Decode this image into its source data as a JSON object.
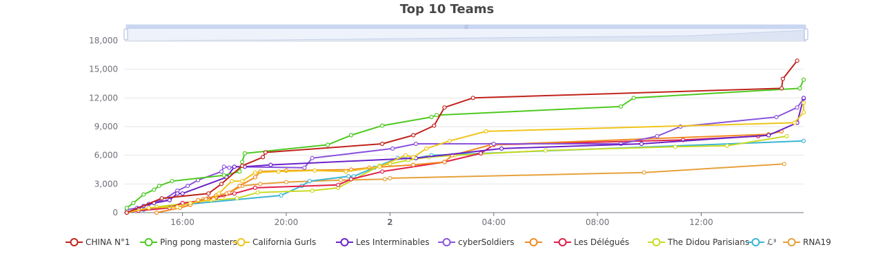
{
  "chart_data": {
    "type": "line",
    "title": "Top 10 Teams",
    "xlabel": "",
    "ylabel": "",
    "ylim": [
      0,
      18000
    ],
    "y_ticks": [
      0,
      3000,
      6000,
      9000,
      12000,
      15000,
      18000
    ],
    "y_tick_labels": [
      "0",
      "3,000",
      "6,000",
      "9,000",
      "12,000",
      "15,000",
      "18,000"
    ],
    "x_ticks": [
      16,
      20,
      24,
      28,
      32,
      36
    ],
    "x_tick_labels": [
      "16:00",
      "20:00",
      "2",
      "04:00",
      "08:00",
      "12:00"
    ],
    "x_unit": "hours",
    "xlim": [
      13.75,
      39.95
    ],
    "grid": true,
    "legend_position": "bottom",
    "has_zoom_slider": true,
    "series": [
      {
        "name": "CHINA N°1",
        "color": "#c0221b",
        "x": [
          13.85,
          15.2,
          17.0,
          17.5,
          18.3,
          19.1,
          19.2,
          23.7,
          24.9,
          25.7,
          26.1,
          27.2,
          39.1,
          39.15,
          39.7
        ],
        "y": [
          0,
          1500,
          2000,
          3000,
          4900,
          5800,
          6300,
          7200,
          8100,
          9100,
          11000,
          12000,
          13000,
          14000,
          15900
        ]
      },
      {
        "name": "Ping pong masters",
        "color": "#4cc91f",
        "x": [
          13.85,
          14.1,
          14.5,
          14.9,
          15.1,
          15.6,
          17.6,
          18.2,
          18.3,
          18.4,
          21.6,
          22.5,
          23.7,
          25.6,
          25.8,
          32.9,
          33.4,
          39.8,
          39.95
        ],
        "y": [
          500,
          1000,
          1900,
          2400,
          2800,
          3300,
          3900,
          4300,
          5300,
          6200,
          7100,
          8100,
          9100,
          10000,
          10200,
          11100,
          12000,
          13000,
          13900
        ]
      },
      {
        "name": "California Gurls",
        "color": "#f0c419",
        "x": [
          13.85,
          14.7,
          15.8,
          16.3,
          17.2,
          17.4,
          17.9,
          18.3,
          18.8,
          19.7,
          21.1,
          22.3,
          23.6,
          24.6,
          24.9,
          25.4,
          26.3,
          27.7,
          39.6,
          39.95,
          39.95
        ],
        "y": [
          0,
          500,
          600,
          1000,
          1400,
          2000,
          3300,
          3300,
          4200,
          4300,
          4400,
          4300,
          4800,
          6000,
          5800,
          6700,
          7500,
          8500,
          9400,
          10500,
          11500
        ]
      },
      {
        "name": "Les Interminables",
        "color": "#6a22c8",
        "x": [
          13.85,
          14.3,
          14.5,
          14.9,
          15.5,
          15.8,
          16.0,
          17.7,
          18.0,
          18.4,
          19.4,
          25.0,
          28.3,
          33.7,
          38.6,
          39.7,
          39.95
        ],
        "y": [
          0,
          400,
          700,
          1000,
          1300,
          2000,
          2000,
          3700,
          4800,
          4800,
          5000,
          5700,
          6700,
          7200,
          8100,
          9400,
          12000
        ]
      },
      {
        "name": "cyberSoldiers",
        "color": "#8a52dc",
        "x": [
          13.85,
          14.25,
          14.7,
          15.3,
          15.8,
          16.2,
          16.6,
          17.5,
          17.6,
          17.8,
          18.0,
          20.7,
          21.0,
          24.1,
          25.0,
          28.0,
          32.9,
          34.3,
          35.2,
          38.9,
          39.7,
          39.95
        ],
        "y": [
          300,
          500,
          900,
          1400,
          2300,
          2800,
          3400,
          4300,
          4800,
          4700,
          4800,
          4700,
          5700,
          6700,
          7200,
          7200,
          7200,
          8000,
          9000,
          10000,
          11000,
          11900
        ]
      },
      {
        "name": "",
        "color": "#f08a24",
        "x": [
          15.0,
          15.9,
          16.3,
          16.6,
          16.9,
          17.3,
          17.7,
          17.8,
          18.2,
          18.8,
          19.0,
          20.0,
          22.5,
          23.2,
          24.9,
          26.1,
          26.4,
          27.9,
          38.6,
          39.1
        ],
        "y": [
          0,
          500,
          800,
          1300,
          1400,
          1800,
          2000,
          2100,
          2800,
          3700,
          4300,
          4400,
          4500,
          4700,
          5000,
          5300,
          6000,
          7100,
          8200,
          8500
        ]
      },
      {
        "name": "Les Délégués",
        "color": "#e01e48",
        "x": [
          13.85,
          14.3,
          15.5,
          16.0,
          16.6,
          17.0,
          17.3,
          18.0,
          18.8,
          22.0,
          22.5,
          23.7,
          26.1,
          27.5,
          28.0,
          35.3,
          38.2,
          38.6
        ],
        "y": [
          0,
          200,
          500,
          1000,
          1200,
          1500,
          1600,
          2000,
          2600,
          2900,
          3500,
          4300,
          5300,
          6200,
          7100,
          7600,
          8000,
          8100
        ]
      },
      {
        "name": "The Didou Parisians",
        "color": "#c8da21",
        "x": [
          13.85,
          15.0,
          17.1,
          18.1,
          18.9,
          21.0,
          22.0,
          23.6,
          24.0,
          24.7,
          25.5,
          26.5,
          30.0,
          35.0,
          37.0,
          39.3
        ],
        "y": [
          0,
          600,
          1300,
          1500,
          2100,
          2300,
          2600,
          4900,
          5100,
          5500,
          5800,
          6000,
          6500,
          6900,
          7000,
          8000
        ]
      },
      {
        "name": "ℒ³",
        "color": "#3ab4d4",
        "x": [
          13.85,
          14.5,
          15.9,
          19.8,
          20.6,
          20.9,
          22.4,
          22.6,
          23.4,
          24.3,
          25.0,
          25.6,
          39.95
        ],
        "y": [
          0,
          300,
          800,
          1800,
          2800,
          3300,
          3800,
          3800,
          4700,
          5700,
          5700,
          6000,
          7500
        ]
      },
      {
        "name": "RNA19",
        "color": "#e6a03a",
        "x": [
          15.8,
          16.3,
          16.8,
          17.6,
          18.3,
          19.0,
          20.0,
          22.1,
          23.8,
          24.0,
          33.8,
          39.2
        ],
        "y": [
          700,
          1000,
          1400,
          1800,
          2800,
          3000,
          3200,
          3400,
          3500,
          3600,
          4200,
          5100
        ]
      }
    ]
  }
}
